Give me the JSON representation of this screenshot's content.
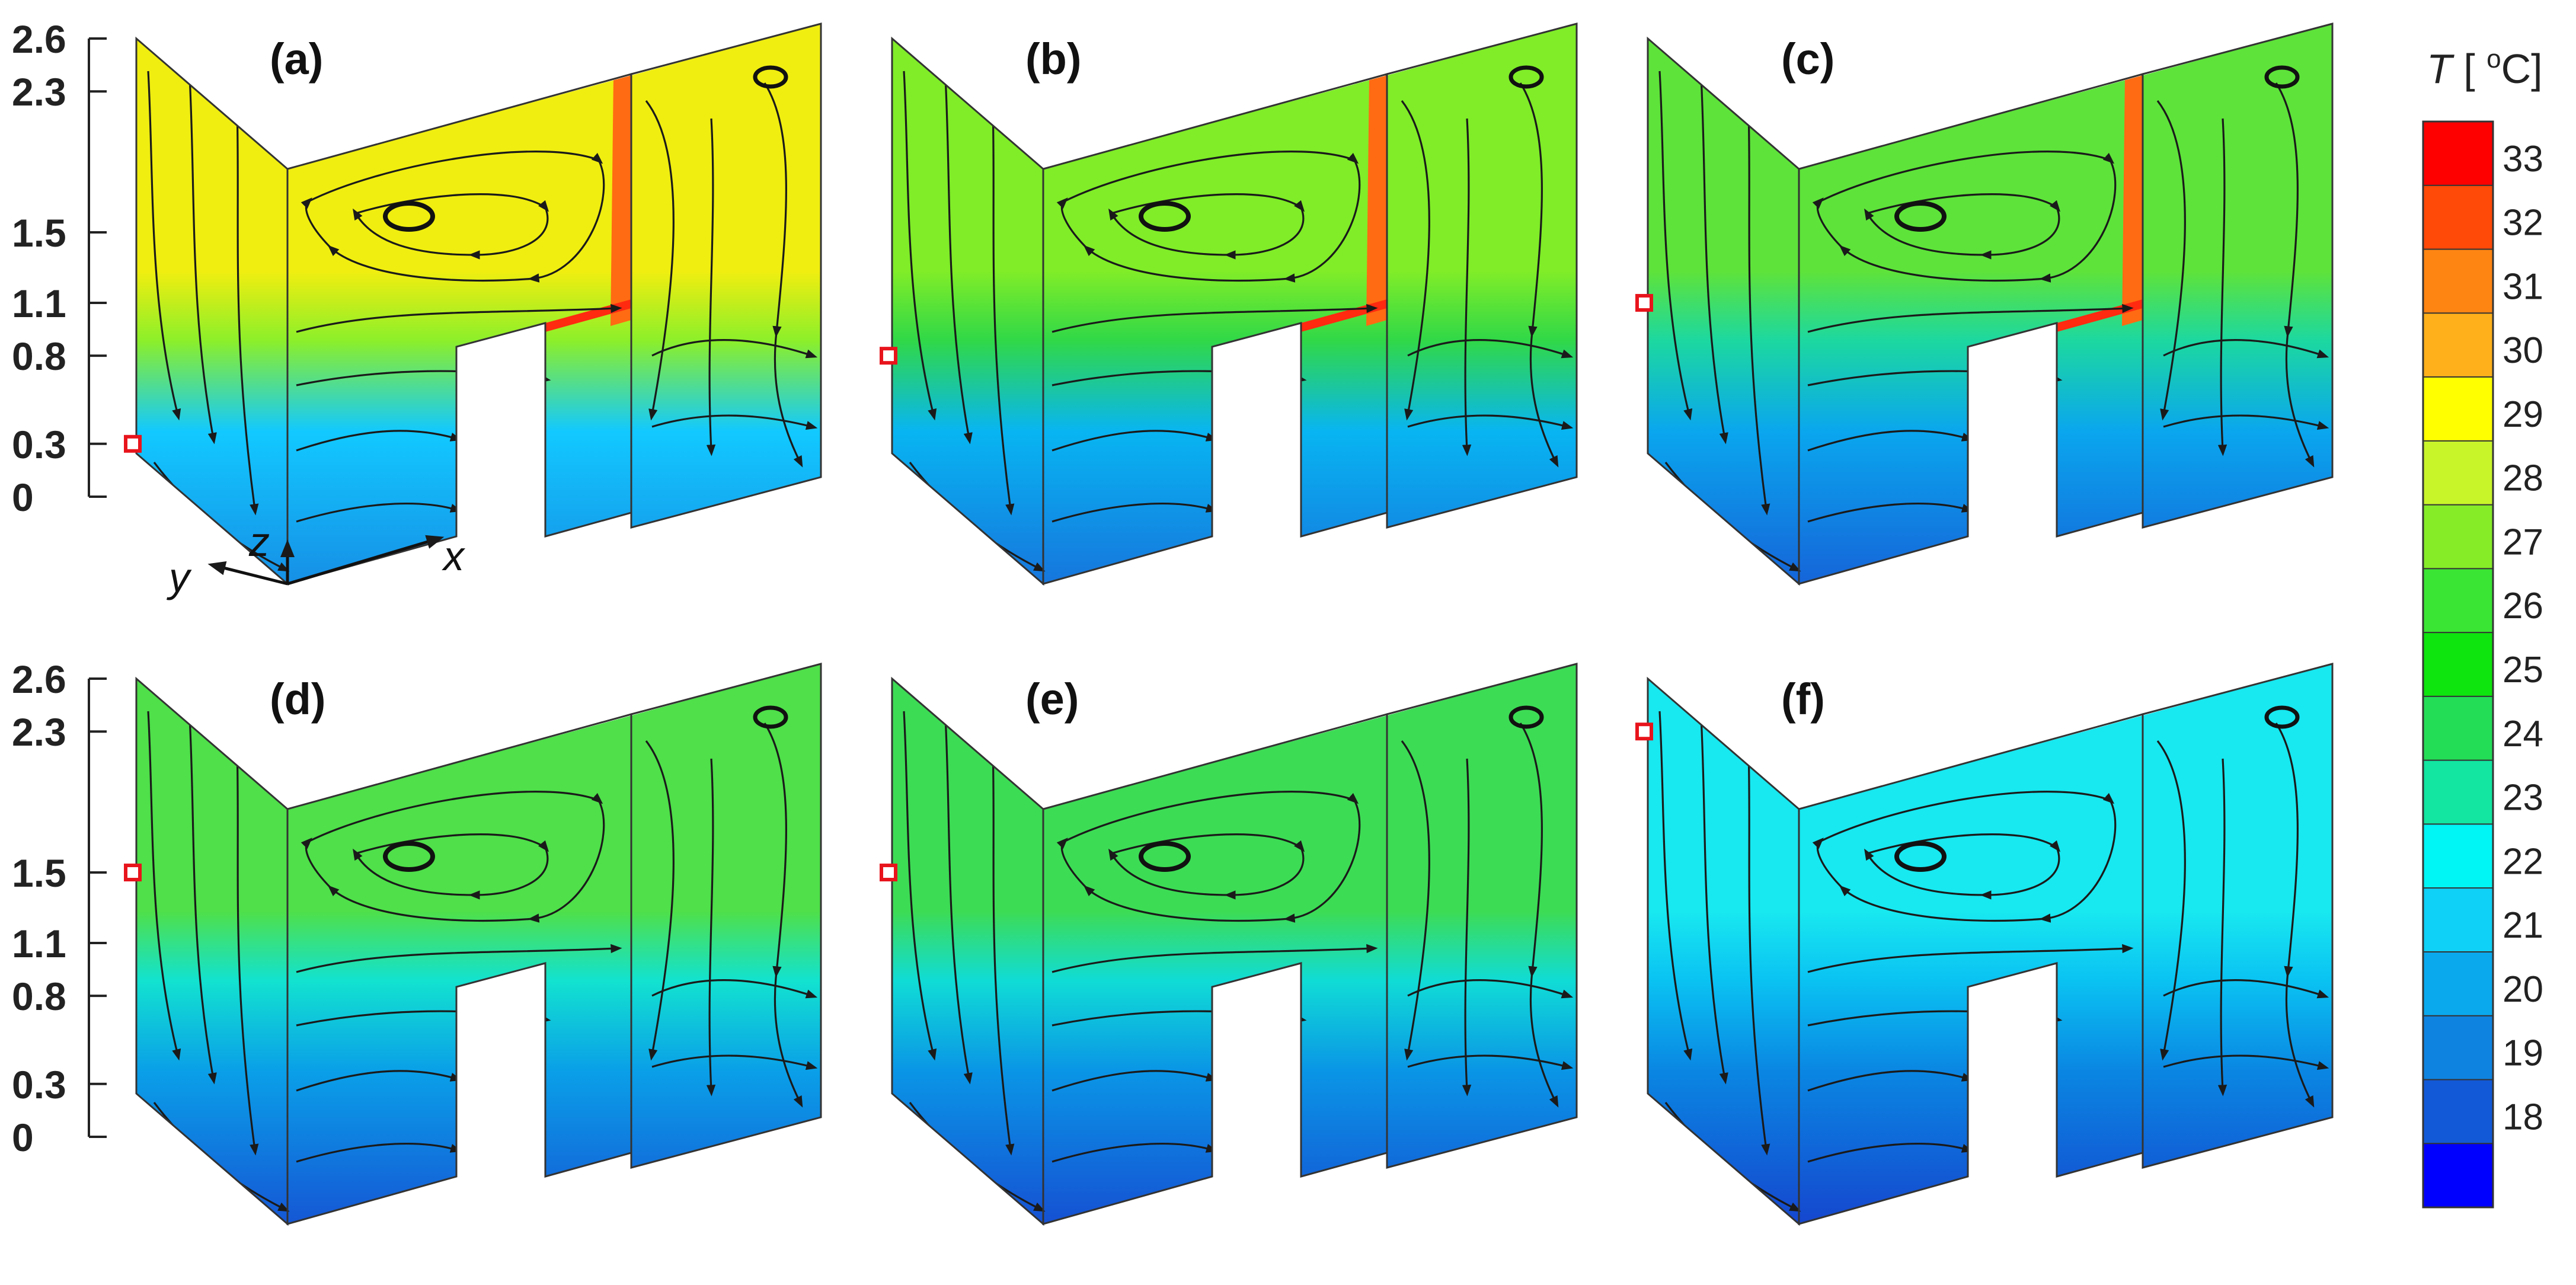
{
  "panels": [
    {
      "id": "a",
      "label": "(a)",
      "temp_top": "#f0ee10",
      "temp_mid": "#8cef2a",
      "temp_low": "#12c9ff",
      "temp_bot": "#1690e6",
      "hot_strip": true,
      "sensor_z": 0.3
    },
    {
      "id": "b",
      "label": "(b)",
      "temp_top": "#80ed28",
      "temp_mid": "#30d848",
      "temp_low": "#08b5f2",
      "temp_bot": "#1677dd",
      "hot_strip": true,
      "sensor_z": 0.8
    },
    {
      "id": "c",
      "label": "(c)",
      "temp_top": "#5ee33a",
      "temp_mid": "#1cd8a0",
      "temp_low": "#0aa6ee",
      "temp_bot": "#1566d9",
      "hot_strip": true,
      "sensor_z": 1.1
    },
    {
      "id": "d",
      "label": "(d)",
      "temp_top": "#4fe04a",
      "temp_mid": "#12e2d0",
      "temp_low": "#0a9fe8",
      "temp_bot": "#1558d5",
      "hot_strip": false,
      "sensor_z": 1.5
    },
    {
      "id": "e",
      "label": "(e)",
      "temp_top": "#3ddc55",
      "temp_mid": "#10dcd6",
      "temp_low": "#0a95e6",
      "temp_bot": "#1552d3",
      "hot_strip": false,
      "sensor_z": 1.5
    },
    {
      "id": "f",
      "label": "(f)",
      "temp_top": "#18e8f0",
      "temp_mid": "#0ac2f2",
      "temp_low": "#0a86e2",
      "temp_bot": "#1548cf",
      "hot_strip": false,
      "sensor_z": 2.3
    }
  ],
  "z_axis": {
    "ticks": [
      "2.6",
      "2.3",
      "1.5",
      "1.1",
      "0.8",
      "0.3",
      "0"
    ],
    "values": [
      2.6,
      2.3,
      1.5,
      1.1,
      0.8,
      0.3,
      0
    ]
  },
  "axes_labels": {
    "x": "x",
    "y": "y",
    "z": "z"
  },
  "colorbar": {
    "title_italic": "T",
    "title_rest": " [ ",
    "title_deg": "o",
    "title_unit": "C]",
    "levels": [
      "33",
      "32",
      "31",
      "30",
      "29",
      "28",
      "27",
      "26",
      "25",
      "24",
      "23",
      "22",
      "21",
      "20",
      "19",
      "18"
    ],
    "colors": [
      "#ff0000",
      "#ff4a08",
      "#ff8512",
      "#ffb01a",
      "#ffff00",
      "#c8f52a",
      "#86ec28",
      "#3ae633",
      "#0ee40e",
      "#23dd57",
      "#12e6a0",
      "#00f5f5",
      "#0fd0f6",
      "#0aa9ee",
      "#0f83e0",
      "#1259d8",
      "#0000ff"
    ]
  },
  "colors": {
    "sensor": "#e8141c",
    "outline": "#333333"
  }
}
